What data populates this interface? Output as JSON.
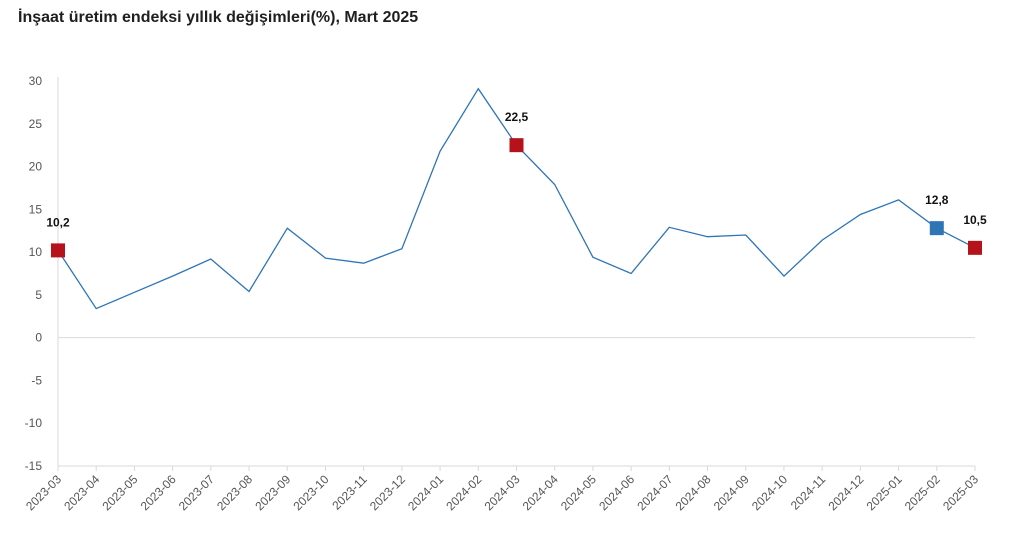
{
  "chart_data": {
    "type": "line",
    "title": "İnşaat üretim endeksi yıllık değişimleri(%), Mart 2025",
    "xlabel": "",
    "ylabel": "",
    "ylim": [
      -15,
      30
    ],
    "yticks": [
      "30",
      "25",
      "20",
      "15",
      "10",
      "5",
      "0",
      "-5",
      "-10",
      "-15"
    ],
    "ytick_values": [
      30,
      25,
      20,
      15,
      10,
      5,
      0,
      -5,
      -10,
      -15
    ],
    "categories": [
      "2023-03",
      "2023-04",
      "2023-05",
      "2023-06",
      "2023-07",
      "2023-08",
      "2023-09",
      "2023-10",
      "2023-11",
      "2023-12",
      "2024-01",
      "2024-02",
      "2024-03",
      "2024-04",
      "2024-05",
      "2024-06",
      "2024-07",
      "2024-08",
      "2024-09",
      "2024-10",
      "2024-11",
      "2024-12",
      "2025-01",
      "2025-02",
      "2025-03"
    ],
    "series": [
      {
        "values": [
          10.2,
          3.4,
          5.3,
          7.2,
          9.2,
          5.4,
          12.8,
          9.3,
          8.7,
          10.4,
          21.8,
          29.1,
          22.5,
          17.9,
          9.4,
          7.5,
          12.9,
          11.8,
          12.0,
          7.2,
          11.4,
          14.4,
          16.1,
          12.8,
          10.5
        ]
      }
    ],
    "markers": [
      {
        "index": 0,
        "label": "10,2",
        "color": "#b5121b"
      },
      {
        "index": 12,
        "label": "22,5",
        "color": "#b5121b"
      },
      {
        "index": 23,
        "label": "12,8",
        "color": "#2e75b6"
      },
      {
        "index": 24,
        "label": "10,5",
        "color": "#b5121b"
      }
    ],
    "line_color": "#2e75b6",
    "grid": false
  }
}
